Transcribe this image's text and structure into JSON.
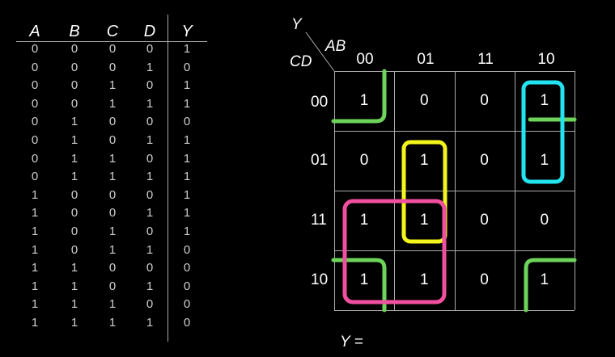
{
  "truth_table": {
    "headers": [
      "A",
      "B",
      "C",
      "D",
      "Y"
    ],
    "rows": [
      [
        "0",
        "0",
        "0",
        "0",
        "1"
      ],
      [
        "0",
        "0",
        "0",
        "1",
        "0"
      ],
      [
        "0",
        "0",
        "1",
        "0",
        "1"
      ],
      [
        "0",
        "0",
        "1",
        "1",
        "1"
      ],
      [
        "0",
        "1",
        "0",
        "0",
        "0"
      ],
      [
        "0",
        "1",
        "0",
        "1",
        "1"
      ],
      [
        "0",
        "1",
        "1",
        "0",
        "1"
      ],
      [
        "0",
        "1",
        "1",
        "1",
        "1"
      ],
      [
        "1",
        "0",
        "0",
        "0",
        "1"
      ],
      [
        "1",
        "0",
        "0",
        "1",
        "1"
      ],
      [
        "1",
        "0",
        "1",
        "0",
        "1"
      ],
      [
        "1",
        "0",
        "1",
        "1",
        "0"
      ],
      [
        "1",
        "1",
        "0",
        "0",
        "0"
      ],
      [
        "1",
        "1",
        "0",
        "1",
        "0"
      ],
      [
        "1",
        "1",
        "1",
        "0",
        "0"
      ],
      [
        "1",
        "1",
        "1",
        "1",
        "0"
      ]
    ]
  },
  "kmap": {
    "output_label": "Y",
    "col_var": "AB",
    "row_var": "CD",
    "col_labels": [
      "00",
      "01",
      "11",
      "10"
    ],
    "row_labels": [
      "00",
      "01",
      "11",
      "10"
    ],
    "cells": [
      [
        "1",
        "0",
        "0",
        "1"
      ],
      [
        "0",
        "1",
        "0",
        "1"
      ],
      [
        "1",
        "1",
        "0",
        "0"
      ],
      [
        "1",
        "1",
        "0",
        "1"
      ]
    ],
    "group_colors": {
      "corners": "#6dd35a",
      "cyan": "#22e4f0",
      "yellow": "#f5f51e",
      "pink": "#f0509f"
    }
  },
  "equation_label": "Y ="
}
